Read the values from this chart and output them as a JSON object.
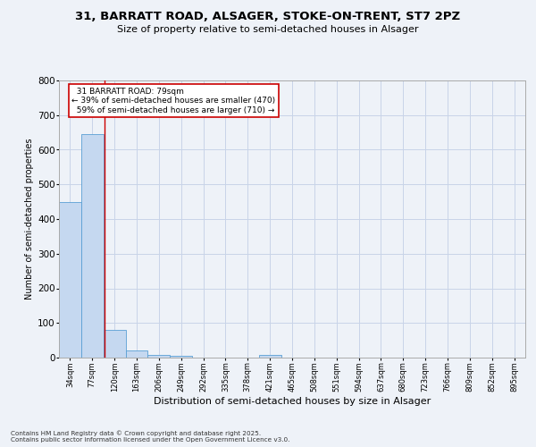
{
  "title_line1": "31, BARRATT ROAD, ALSAGER, STOKE-ON-TRENT, ST7 2PZ",
  "title_line2": "Size of property relative to semi-detached houses in Alsager",
  "xlabel": "Distribution of semi-detached houses by size in Alsager",
  "ylabel": "Number of semi-detached properties",
  "categories": [
    "34sqm",
    "77sqm",
    "120sqm",
    "163sqm",
    "206sqm",
    "249sqm",
    "292sqm",
    "335sqm",
    "378sqm",
    "421sqm",
    "465sqm",
    "508sqm",
    "551sqm",
    "594sqm",
    "637sqm",
    "680sqm",
    "723sqm",
    "766sqm",
    "809sqm",
    "852sqm",
    "895sqm"
  ],
  "values": [
    450,
    645,
    80,
    20,
    8,
    5,
    0,
    0,
    0,
    8,
    0,
    0,
    0,
    0,
    0,
    0,
    0,
    0,
    0,
    0,
    0
  ],
  "bar_color": "#c5d8f0",
  "bar_edge_color": "#5a9fd4",
  "grid_color": "#c8d4e8",
  "annotation_text": "  31 BARRATT ROAD: 79sqm\n← 39% of semi-detached houses are smaller (470)\n  59% of semi-detached houses are larger (710) →",
  "annotation_box_color": "#ffffff",
  "annotation_box_edge": "#cc0000",
  "vline_color": "#cc0000",
  "vline_x": 1.55,
  "ylim": [
    0,
    800
  ],
  "yticks": [
    0,
    100,
    200,
    300,
    400,
    500,
    600,
    700,
    800
  ],
  "footer_line1": "Contains HM Land Registry data © Crown copyright and database right 2025.",
  "footer_line2": "Contains public sector information licensed under the Open Government Licence v3.0.",
  "bg_color": "#eef2f8",
  "title1_fontsize": 9.5,
  "title2_fontsize": 8,
  "ylabel_fontsize": 7,
  "xlabel_fontsize": 8,
  "xtick_fontsize": 6,
  "ytick_fontsize": 7.5,
  "annot_fontsize": 6.5
}
